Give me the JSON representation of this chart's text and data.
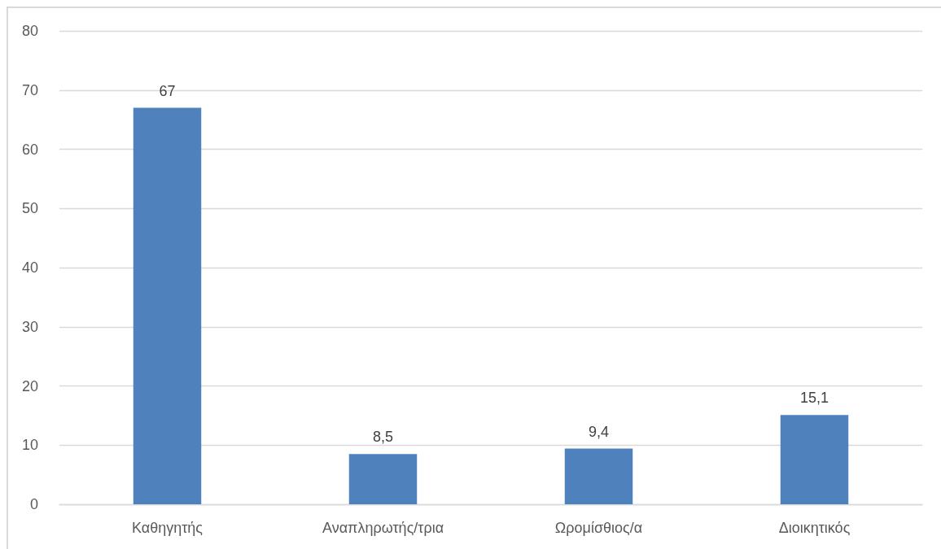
{
  "chart_data": {
    "type": "bar",
    "categories": [
      "Καθηγητής",
      "Αναπληρωτής/τρια",
      "Ωρομίσθιος/α",
      "Διοικητικός"
    ],
    "values": [
      67,
      8.5,
      9.4,
      15.1
    ],
    "color": "#4f81bd",
    "value_labels": [
      "67",
      "8,5",
      "9,4",
      "15,1"
    ],
    "ylim": [
      0,
      80
    ],
    "yticks": [
      0,
      10,
      20,
      30,
      40,
      50,
      60,
      70,
      80
    ],
    "grid": "y"
  }
}
